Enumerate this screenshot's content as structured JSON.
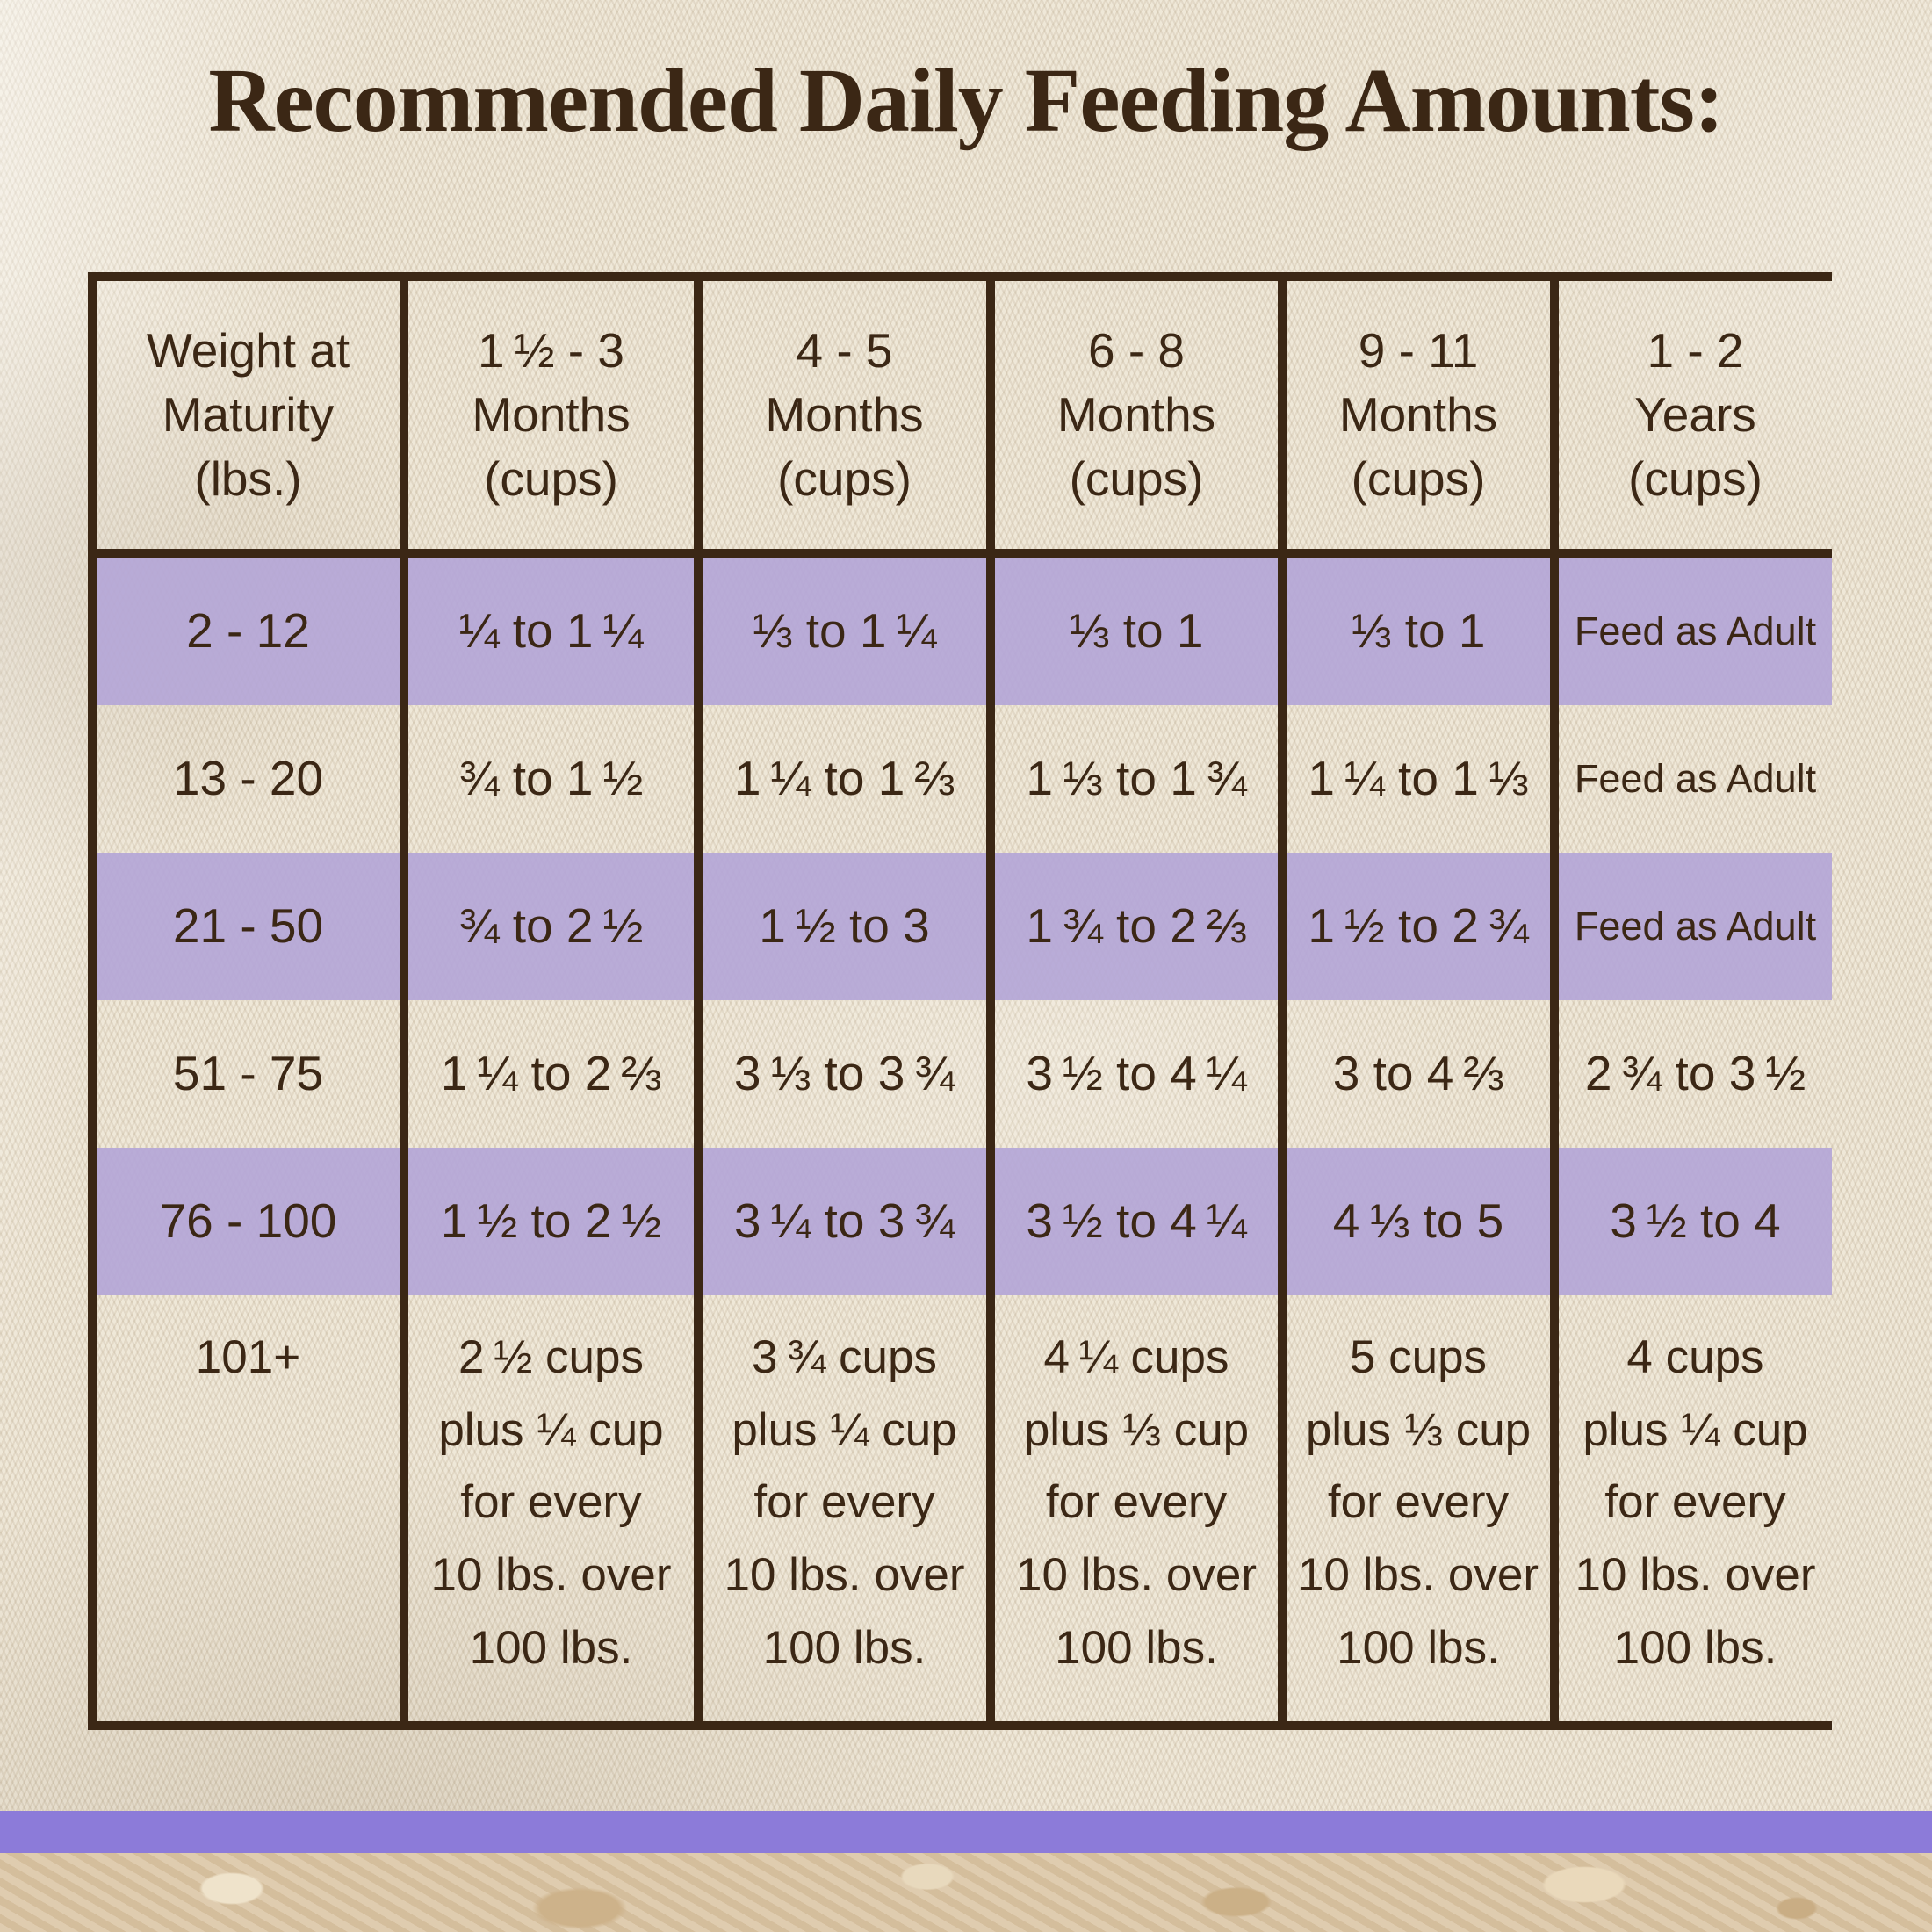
{
  "chart_data": {
    "type": "table",
    "title": "Recommended Daily Feeding Amounts:",
    "columns": [
      "Weight at\nMaturity\n(lbs.)",
      "1 ½ - 3\nMonths\n(cups)",
      "4 - 5\nMonths\n(cups)",
      "6 - 8\nMonths\n(cups)",
      "9 - 11\nMonths\n(cups)",
      "1 - 2\nYears\n(cups)"
    ],
    "rows": [
      {
        "weight": "2 - 12",
        "highlight": true,
        "cells": [
          "¼ to 1 ¼",
          "⅓ to 1 ¼",
          "⅓ to 1",
          "⅓ to 1",
          "Feed as Adult"
        ]
      },
      {
        "weight": "13 - 20",
        "highlight": false,
        "cells": [
          "¾ to 1 ½",
          "1 ¼ to 1 ⅔",
          "1 ⅓ to 1 ¾",
          "1 ¼ to 1 ⅓",
          "Feed as Adult"
        ]
      },
      {
        "weight": "21 - 50",
        "highlight": true,
        "cells": [
          "¾ to 2 ½",
          "1 ½ to 3",
          "1 ¾ to 2 ⅔",
          "1 ½ to 2 ¾",
          "Feed as Adult"
        ]
      },
      {
        "weight": "51 - 75",
        "highlight": false,
        "cells": [
          "1 ¼ to 2 ⅔",
          "3 ⅓ to 3 ¾",
          "3 ½ to 4 ¼",
          "3 to 4 ⅔",
          "2 ¾ to 3 ½"
        ]
      },
      {
        "weight": "76 - 100",
        "highlight": true,
        "cells": [
          "1 ½ to 2 ½",
          "3 ¼ to 3 ¾",
          "3 ½ to 4 ¼",
          "4 ⅓ to 5",
          "3 ½ to 4"
        ]
      },
      {
        "weight": "101+",
        "highlight": false,
        "cells": [
          "2 ½ cups\nplus ¼ cup\nfor every\n10 lbs. over\n100 lbs.",
          "3 ¾ cups\nplus ¼ cup\nfor every\n10 lbs. over\n100 lbs.",
          "4 ¼ cups\nplus ⅓ cup\nfor every\n10 lbs. over\n100 lbs.",
          "5 cups\nplus ⅓ cup\nfor every\n10 lbs. over\n100 lbs.",
          "4 cups\nplus ¼ cup\nfor every\n10 lbs. over\n100 lbs."
        ]
      }
    ],
    "layout": {
      "grid": "dark brown rules between columns, under header, around top/left/bottom; no right-edge rule",
      "highlight_rows": [
        0,
        2,
        4
      ]
    }
  },
  "colors": {
    "text_and_rules_brown": "#3B2715",
    "row_highlight_purple": "#B4A6D7",
    "footer_bar_purple": "#8C7BD9",
    "burlap_cream_background": "#ECE3D1",
    "stone_tan_strip": "#DBC5A4"
  }
}
